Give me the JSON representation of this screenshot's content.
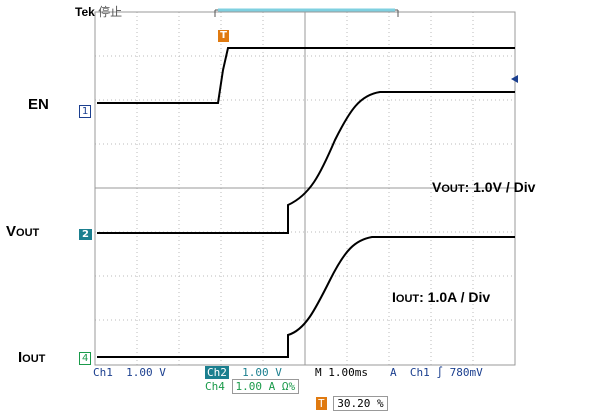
{
  "header": {
    "brand": "Tek",
    "state": "停止"
  },
  "labels": {
    "en": "EN",
    "vout": {
      "main": "V",
      "sub": "OUT"
    },
    "iout": {
      "main": "I",
      "sub": "OUT"
    },
    "vout_scale": {
      "main": "V",
      "sub": "OUT",
      "rest": ": 1.0V / Div"
    },
    "iout_scale": {
      "main": "I",
      "sub": "OUT",
      "rest": ": 1.0A / Div"
    }
  },
  "markers": {
    "ch1": "1",
    "ch2": "2",
    "ch4": "4",
    "trigger": "T"
  },
  "status": {
    "ch1": "Ch1",
    "ch1_scale": "1.00 V",
    "ch2": "Ch2",
    "ch2_scale": "1.00 V",
    "ch4": "Ch4",
    "ch4_scale": "1.00 A Ω%",
    "timebase": "M 1.00ms",
    "acq": "A",
    "trig_src": "Ch1",
    "trig_level": "780mV",
    "position": "30.20 %"
  }
}
